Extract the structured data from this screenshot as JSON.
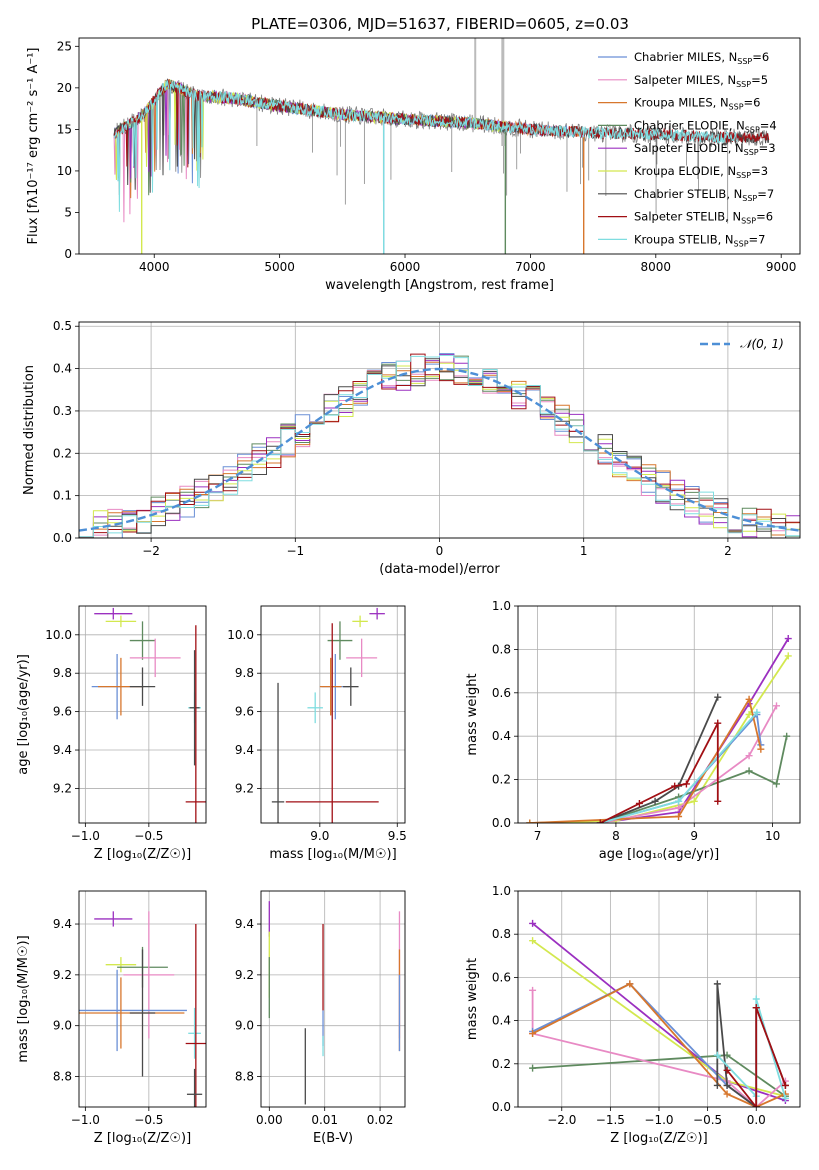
{
  "title": "PLATE=0306, MJD=51637, FIBERID=0605, z=0.03",
  "colors": {
    "chabrier_miles": "#6a8fd6",
    "salpeter_miles": "#e88ac4",
    "kroupa_miles": "#d7772d",
    "chabrier_elodie": "#5f8a5f",
    "salpeter_elodie": "#9b30c0",
    "kroupa_elodie": "#d3e84f",
    "chabrier_stelib": "#4a4a4a",
    "salpeter_stelib": "#a10f14",
    "kroupa_stelib": "#7fdde0",
    "normal": "#4d8fd6"
  },
  "chart_data": [
    {
      "id": "spectrum",
      "type": "line",
      "xlabel": "wavelength [Angstrom, rest frame]",
      "ylabel": "Flux [fλ10⁻¹⁷ erg cm⁻² s⁻¹ A⁻¹]",
      "xlim": [
        3400,
        9150
      ],
      "ylim": [
        0,
        26
      ],
      "xticks": [
        4000,
        5000,
        6000,
        7000,
        8000,
        9000
      ],
      "yticks": [
        0,
        5,
        10,
        15,
        20,
        25
      ],
      "grid": false,
      "legend_position": "top-right",
      "continuum": {
        "x": [
          3680,
          3900,
          4100,
          4350,
          4600,
          5000,
          5500,
          6000,
          6500,
          7000,
          7500,
          8000,
          8500,
          8900
        ],
        "y": [
          14.5,
          16.5,
          20.5,
          19.0,
          18.8,
          17.8,
          16.8,
          16.2,
          15.8,
          15.0,
          14.6,
          14.4,
          14.0,
          14.0
        ]
      },
      "series": [
        {
          "name": "Chabrier MILES, N_SSP=6",
          "color_key": "chabrier_miles",
          "xmax": 7420,
          "drops": [
            {
              "x": 5830,
              "y": 0
            }
          ]
        },
        {
          "name": "Salpeter MILES, N_SSP=5",
          "color_key": "salpeter_miles",
          "xmax": 7420,
          "drops": []
        },
        {
          "name": "Kroupa MILES, N_SSP=6",
          "color_key": "kroupa_miles",
          "xmax": 7420,
          "drops": [
            {
              "x": 7425,
              "y": 0
            }
          ]
        },
        {
          "name": "Chabrier ELODIE, N_SSP=4",
          "color_key": "chabrier_elodie",
          "xmax": 6800,
          "drops": [
            {
              "x": 6800,
              "y": 0
            }
          ]
        },
        {
          "name": "Salpeter ELODIE, N_SSP=3",
          "color_key": "salpeter_elodie",
          "xmax": 6800,
          "drops": []
        },
        {
          "name": "Kroupa ELODIE, N_SSP=3",
          "color_key": "kroupa_elodie",
          "xmax": 6800,
          "drops": [
            {
              "x": 3900,
              "y": 0
            }
          ]
        },
        {
          "name": "Chabrier STELIB, N_SSP=7",
          "color_key": "chabrier_stelib",
          "xmax": 8900,
          "drops": []
        },
        {
          "name": "Salpeter STELIB, N_SSP=6",
          "color_key": "salpeter_stelib",
          "xmax": 8900,
          "drops": []
        },
        {
          "name": "Kroupa STELIB, N_SSP=7",
          "color_key": "kroupa_stelib",
          "xmax": 8650,
          "drops": [
            {
              "x": 5830,
              "y": 0
            }
          ]
        }
      ],
      "legend": [
        {
          "name": "Chabrier MILES",
          "nssp": "6",
          "color_key": "chabrier_miles"
        },
        {
          "name": "Salpeter MILES",
          "nssp": "5",
          "color_key": "salpeter_miles"
        },
        {
          "name": "Kroupa MILES",
          "nssp": "6",
          "color_key": "kroupa_miles"
        },
        {
          "name": "Chabrier ELODIE",
          "nssp": "4",
          "color_key": "chabrier_elodie"
        },
        {
          "name": "Salpeter ELODIE",
          "nssp": "3",
          "color_key": "salpeter_elodie"
        },
        {
          "name": "Kroupa ELODIE",
          "nssp": "3",
          "color_key": "kroupa_elodie"
        },
        {
          "name": "Chabrier STELIB",
          "nssp": "7",
          "color_key": "chabrier_stelib"
        },
        {
          "name": "Salpeter STELIB",
          "nssp": "6",
          "color_key": "salpeter_stelib"
        },
        {
          "name": "Kroupa STELIB",
          "nssp": "7",
          "color_key": "kroupa_stelib"
        }
      ]
    },
    {
      "id": "residuals",
      "type": "line",
      "xlabel": "(data-model)/error",
      "ylabel": "Normed distribution",
      "xlim": [
        -2.5,
        2.5
      ],
      "ylim": [
        0,
        0.51
      ],
      "xticks": [
        -2,
        -1,
        0,
        1,
        2
      ],
      "yticks": [
        0.0,
        0.1,
        0.2,
        0.3,
        0.4,
        0.5
      ],
      "grid": true,
      "legend_position": "top-right",
      "legend_label": "𝒩(0, 1)",
      "histogram_bin_width": 0.1,
      "normal": {
        "mean": 0,
        "sigma": 1
      }
    },
    {
      "id": "age_vs_Z",
      "type": "scatter",
      "xlabel": "Z [log₁₀(Z/Z☉)]",
      "ylabel": "age  [log₁₀(age/yr)]",
      "xlim": [
        -1.05,
        -0.05
      ],
      "ylim": [
        9.02,
        10.15
      ],
      "xticks": [
        -1.0,
        -0.5
      ],
      "yticks": [
        9.2,
        9.4,
        9.6,
        9.8,
        10.0
      ],
      "grid": true,
      "points": [
        {
          "x": -0.78,
          "y": 10.11,
          "xerr": 0.15,
          "yerr": 0.03,
          "color_key": "salpeter_elodie"
        },
        {
          "x": -0.72,
          "y": 10.07,
          "xerr": 0.12,
          "yerr": 0.03,
          "color_key": "kroupa_elodie"
        },
        {
          "x": -0.55,
          "y": 9.97,
          "xerr": 0.1,
          "yerr": 0.1,
          "color_key": "chabrier_elodie"
        },
        {
          "x": -0.45,
          "y": 9.88,
          "xerr": 0.2,
          "yerr": 0.1,
          "color_key": "salpeter_miles"
        },
        {
          "x": -0.75,
          "y": 9.73,
          "xerr": 0.2,
          "yerr": 0.17,
          "color_key": "chabrier_miles"
        },
        {
          "x": -0.72,
          "y": 9.73,
          "xerr": 0.18,
          "yerr": 0.15,
          "color_key": "kroupa_miles"
        },
        {
          "x": -0.55,
          "y": 9.73,
          "xerr": 0.1,
          "yerr": 0.1,
          "color_key": "chabrier_stelib"
        },
        {
          "x": -0.14,
          "y": 9.62,
          "xerr": 0.05,
          "yerr": 0.08,
          "color_key": "kroupa_stelib"
        },
        {
          "x": -0.14,
          "y": 9.62,
          "xerr": 0.04,
          "yerr": 0.3,
          "color_key": "chabrier_stelib"
        },
        {
          "x": -0.13,
          "y": 9.13,
          "xerr": 0.08,
          "yerr": 0.92,
          "color_key": "salpeter_stelib"
        }
      ]
    },
    {
      "id": "age_vs_mass",
      "type": "scatter",
      "xlabel": "mass [log₁₀(M/M☉)]",
      "ylabel": "",
      "xlim": [
        8.62,
        9.55
      ],
      "ylim": [
        9.02,
        10.15
      ],
      "xticks": [
        9.0,
        9.5
      ],
      "yticks": [
        9.2,
        9.4,
        9.6,
        9.8,
        10.0
      ],
      "grid": true,
      "points": [
        {
          "x": 9.37,
          "y": 10.11,
          "xerr": 0.05,
          "yerr": 0.03,
          "color_key": "salpeter_elodie"
        },
        {
          "x": 9.26,
          "y": 10.07,
          "xerr": 0.05,
          "yerr": 0.03,
          "color_key": "kroupa_elodie"
        },
        {
          "x": 9.13,
          "y": 9.97,
          "xerr": 0.08,
          "yerr": 0.1,
          "color_key": "chabrier_elodie"
        },
        {
          "x": 9.27,
          "y": 9.88,
          "xerr": 0.1,
          "yerr": 0.1,
          "color_key": "salpeter_miles"
        },
        {
          "x": 9.1,
          "y": 9.73,
          "xerr": 0.09,
          "yerr": 0.17,
          "color_key": "chabrier_miles"
        },
        {
          "x": 9.07,
          "y": 9.73,
          "xerr": 0.07,
          "yerr": 0.15,
          "color_key": "kroupa_miles"
        },
        {
          "x": 9.2,
          "y": 9.73,
          "xerr": 0.05,
          "yerr": 0.1,
          "color_key": "chabrier_stelib"
        },
        {
          "x": 8.97,
          "y": 9.62,
          "xerr": 0.05,
          "yerr": 0.08,
          "color_key": "kroupa_stelib"
        },
        {
          "x": 8.73,
          "y": 9.13,
          "xerr": 0.04,
          "yerr": 0.62,
          "color_key": "chabrier_stelib"
        },
        {
          "x": 9.08,
          "y": 9.13,
          "xerr": 0.3,
          "yerr": 0.93,
          "color_key": "salpeter_stelib"
        }
      ]
    },
    {
      "id": "weight_vs_age",
      "type": "line",
      "xlabel": "age  [log₁₀(age/yr)]",
      "ylabel": "mass weight",
      "xlim": [
        6.75,
        10.35
      ],
      "ylim": [
        0,
        1.0
      ],
      "xticks": [
        7,
        8,
        9,
        10
      ],
      "yticks": [
        0.0,
        0.2,
        0.4,
        0.6,
        0.8,
        1.0
      ],
      "grid": true,
      "series": [
        {
          "color_key": "salpeter_elodie",
          "x": [
            6.9,
            8.0,
            8.8,
            9.7,
            10.2
          ],
          "y": [
            0.0,
            0.01,
            0.05,
            0.55,
            0.85
          ]
        },
        {
          "color_key": "kroupa_elodie",
          "x": [
            6.9,
            8.0,
            9.0,
            9.7,
            10.2
          ],
          "y": [
            0.0,
            0.01,
            0.1,
            0.5,
            0.77
          ]
        },
        {
          "color_key": "chabrier_elodie",
          "x": [
            7.8,
            8.8,
            9.7,
            10.05,
            10.18
          ],
          "y": [
            0.0,
            0.12,
            0.24,
            0.18,
            0.4
          ]
        },
        {
          "color_key": "salpeter_miles",
          "x": [
            7.8,
            8.8,
            9.7,
            10.05
          ],
          "y": [
            0.0,
            0.07,
            0.31,
            0.54
          ]
        },
        {
          "color_key": "chabrier_miles",
          "x": [
            7.8,
            8.8,
            9.8,
            9.85
          ],
          "y": [
            0.0,
            0.1,
            0.5,
            0.36
          ]
        },
        {
          "color_key": "kroupa_miles",
          "x": [
            6.9,
            8.8,
            9.7,
            9.85
          ],
          "y": [
            0.0,
            0.03,
            0.57,
            0.34
          ]
        },
        {
          "color_key": "chabrier_stelib",
          "x": [
            7.8,
            8.5,
            8.8,
            9.3
          ],
          "y": [
            0.0,
            0.1,
            0.17,
            0.58
          ]
        },
        {
          "color_key": "kroupa_stelib",
          "x": [
            7.8,
            8.8,
            9.8
          ],
          "y": [
            0.0,
            0.1,
            0.51
          ]
        },
        {
          "color_key": "salpeter_stelib",
          "x": [
            7.8,
            8.3,
            8.75,
            8.9,
            9.3,
            9.3
          ],
          "y": [
            0.0,
            0.09,
            0.17,
            0.18,
            0.46,
            0.1
          ]
        }
      ]
    },
    {
      "id": "mass_vs_Z",
      "type": "scatter",
      "xlabel": "Z [log₁₀(Z/Z☉)]",
      "ylabel": "mass [log₁₀(M/M☉)]",
      "xlim": [
        -1.05,
        -0.05
      ],
      "ylim": [
        8.68,
        9.53
      ],
      "xticks": [
        -1.0,
        -0.5
      ],
      "yticks": [
        8.8,
        9.0,
        9.2,
        9.4
      ],
      "grid": true,
      "points": [
        {
          "x": -0.78,
          "y": 9.42,
          "xerr": 0.15,
          "yerr": 0.03,
          "color_key": "salpeter_elodie"
        },
        {
          "x": -0.72,
          "y": 9.24,
          "xerr": 0.12,
          "yerr": 0.03,
          "color_key": "kroupa_elodie"
        },
        {
          "x": -0.55,
          "y": 9.23,
          "xerr": 0.2,
          "yerr": 0.08,
          "color_key": "chabrier_elodie"
        },
        {
          "x": -0.5,
          "y": 9.2,
          "xerr": 0.2,
          "yerr": 0.25,
          "color_key": "salpeter_miles"
        },
        {
          "x": -0.75,
          "y": 9.06,
          "xerr": 0.55,
          "yerr": 0.16,
          "color_key": "chabrier_miles"
        },
        {
          "x": -0.72,
          "y": 9.05,
          "xerr": 0.5,
          "yerr": 0.14,
          "color_key": "kroupa_miles"
        },
        {
          "x": -0.55,
          "y": 9.05,
          "xerr": 0.1,
          "yerr": 0.25,
          "color_key": "chabrier_stelib"
        },
        {
          "x": -0.14,
          "y": 8.97,
          "xerr": 0.05,
          "yerr": 0.1,
          "color_key": "kroupa_stelib"
        },
        {
          "x": -0.13,
          "y": 8.93,
          "xerr": 0.08,
          "yerr": 0.47,
          "color_key": "salpeter_stelib"
        },
        {
          "x": -0.14,
          "y": 8.73,
          "xerr": 0.06,
          "yerr": 0.1,
          "color_key": "chabrier_stelib"
        }
      ]
    },
    {
      "id": "mass_vs_ebv",
      "type": "scatter",
      "xlabel": "E(B-V)",
      "ylabel": "",
      "xlim": [
        -0.0015,
        0.0245
      ],
      "ylim": [
        8.68,
        9.53
      ],
      "xticks": [
        0.0,
        0.01,
        0.02
      ],
      "yticks": [
        8.8,
        9.0,
        9.2,
        9.4
      ],
      "grid": true,
      "points": [
        {
          "x": 0.0,
          "y": 9.42,
          "xerr": 0,
          "yerr": 0.07,
          "color_key": "salpeter_elodie"
        },
        {
          "x": 0.0,
          "y": 9.24,
          "xerr": 0,
          "yerr": 0.13,
          "color_key": "kroupa_elodie"
        },
        {
          "x": 0.0,
          "y": 9.15,
          "xerr": 0,
          "yerr": 0.12,
          "color_key": "chabrier_elodie"
        },
        {
          "x": 0.0065,
          "y": 8.84,
          "xerr": 0,
          "yerr": 0.15,
          "color_key": "chabrier_stelib"
        },
        {
          "x": 0.0097,
          "y": 9.23,
          "xerr": 0,
          "yerr": 0.17,
          "color_key": "salpeter_stelib"
        },
        {
          "x": 0.0097,
          "y": 8.99,
          "xerr": 0,
          "yerr": 0.07,
          "color_key": "chabrier_miles"
        },
        {
          "x": 0.0097,
          "y": 8.92,
          "xerr": 0,
          "yerr": 0.04,
          "color_key": "kroupa_stelib"
        },
        {
          "x": 0.0235,
          "y": 9.2,
          "xerr": 0,
          "yerr": 0.25,
          "color_key": "salpeter_miles"
        },
        {
          "x": 0.0235,
          "y": 9.1,
          "xerr": 0,
          "yerr": 0.2,
          "color_key": "kroupa_miles"
        },
        {
          "x": 0.0235,
          "y": 9.05,
          "xerr": 0,
          "yerr": 0.15,
          "color_key": "chabrier_miles"
        }
      ]
    },
    {
      "id": "weight_vs_Z",
      "type": "line",
      "xlabel": "Z [log₁₀(Z/Z☉)]",
      "ylabel": "mass weight",
      "xlim": [
        -2.45,
        0.45
      ],
      "ylim": [
        0,
        1.0
      ],
      "xticks": [
        -2.0,
        -1.5,
        -1.0,
        -0.5,
        0.0
      ],
      "yticks": [
        0.0,
        0.2,
        0.4,
        0.6,
        0.8,
        1.0
      ],
      "grid": true,
      "series": [
        {
          "color_key": "salpeter_elodie",
          "x": [
            -2.3,
            -0.3,
            0.3
          ],
          "y": [
            0.85,
            0.12,
            0.03
          ]
        },
        {
          "color_key": "kroupa_elodie",
          "x": [
            -2.3,
            -0.3,
            0.3
          ],
          "y": [
            0.77,
            0.12,
            0.05
          ]
        },
        {
          "color_key": "chabrier_elodie",
          "x": [
            -2.3,
            -0.3,
            0.3
          ],
          "y": [
            0.18,
            0.24,
            0.05
          ]
        },
        {
          "color_key": "salpeter_miles",
          "x": [
            -2.3,
            -2.3,
            -0.3,
            0.0,
            0.3
          ],
          "y": [
            0.54,
            0.34,
            0.12,
            0.0,
            0.12
          ]
        },
        {
          "color_key": "chabrier_miles",
          "x": [
            -2.3,
            -1.3,
            -0.3,
            0.0
          ],
          "y": [
            0.35,
            0.57,
            0.1,
            0.0
          ]
        },
        {
          "color_key": "kroupa_miles",
          "x": [
            -2.3,
            -1.3,
            -0.3,
            0.0,
            0.3
          ],
          "y": [
            0.34,
            0.57,
            0.06,
            0.0,
            0.06
          ]
        },
        {
          "color_key": "chabrier_stelib",
          "x": [
            -0.4,
            -0.4,
            -0.3,
            0.0,
            0.0,
            0.3
          ],
          "y": [
            0.1,
            0.57,
            0.1,
            0.0,
            0.46,
            0.1
          ]
        },
        {
          "color_key": "kroupa_stelib",
          "x": [
            -0.4,
            0.0,
            0.0,
            0.3
          ],
          "y": [
            0.24,
            0.05,
            0.5,
            0.04
          ]
        },
        {
          "color_key": "salpeter_stelib",
          "x": [
            -0.3,
            0.0,
            0.0,
            0.3
          ],
          "y": [
            0.17,
            0.0,
            0.46,
            0.1
          ]
        }
      ]
    }
  ]
}
